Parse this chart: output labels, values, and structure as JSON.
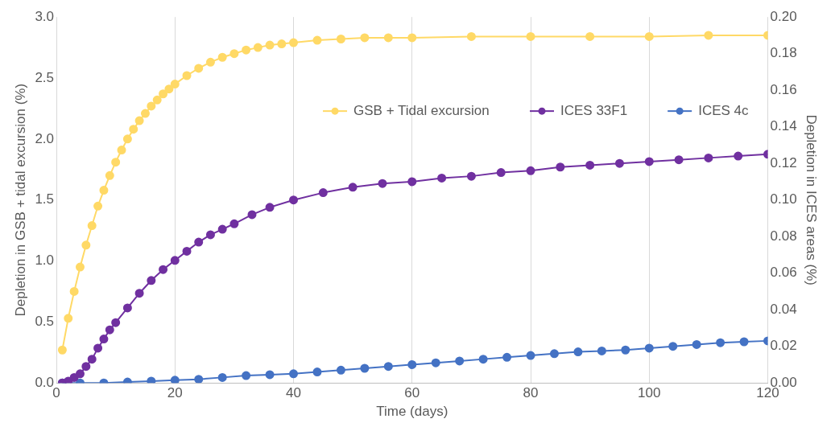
{
  "chart_data": {
    "type": "line",
    "xlabel": "Time (days)",
    "ylabel": "Depletion in GSB + tidal excursion (%)",
    "y2label": "Depletion in ICES areas (%)",
    "xlim": [
      0,
      120
    ],
    "xticks": [
      0,
      20,
      40,
      60,
      80,
      100,
      120
    ],
    "ylim": [
      0,
      3
    ],
    "yticks": [
      {
        "value": 0,
        "label": "0.0"
      },
      {
        "value": 0.5,
        "label": "0.5"
      },
      {
        "value": 1,
        "label": "1.0"
      },
      {
        "value": 1.5,
        "label": "1.5"
      },
      {
        "value": 2,
        "label": "2.0"
      },
      {
        "value": 2.5,
        "label": "2.5"
      },
      {
        "value": 3,
        "label": "3.0"
      }
    ],
    "y2lim": [
      0,
      0.2
    ],
    "y2ticks": [
      {
        "value": 0,
        "label": "0.00"
      },
      {
        "value": 0.02,
        "label": "0.02"
      },
      {
        "value": 0.04,
        "label": "0.04"
      },
      {
        "value": 0.06,
        "label": "0.06"
      },
      {
        "value": 0.08,
        "label": "0.08"
      },
      {
        "value": 0.1,
        "label": "0.10"
      },
      {
        "value": 0.12,
        "label": "0.12"
      },
      {
        "value": 0.14,
        "label": "0.14"
      },
      {
        "value": 0.16,
        "label": "0.16"
      },
      {
        "value": 0.18,
        "label": "0.18"
      },
      {
        "value": 0.2,
        "label": "0.20"
      }
    ],
    "grid": "x",
    "legend": "top right",
    "marker": "circle",
    "line_style": "solid",
    "series": [
      {
        "name": "GSB + Tidal excursion",
        "color": "#ffd966",
        "x": [
          1,
          2,
          3,
          4,
          5,
          6,
          7,
          8,
          9,
          10,
          11,
          12,
          13,
          14,
          15,
          16,
          17,
          18,
          19,
          20,
          22,
          24,
          26,
          28,
          30,
          32,
          34,
          36,
          38,
          40,
          44,
          48,
          52,
          56,
          60,
          70,
          80,
          90,
          100,
          110,
          120
        ],
        "values": [
          0.27,
          0.53,
          0.75,
          0.95,
          1.13,
          1.29,
          1.45,
          1.58,
          1.7,
          1.81,
          1.91,
          2.0,
          2.08,
          2.15,
          2.21,
          2.27,
          2.32,
          2.37,
          2.41,
          2.45,
          2.52,
          2.58,
          2.63,
          2.67,
          2.7,
          2.73,
          2.75,
          2.77,
          2.78,
          2.79,
          2.81,
          2.82,
          2.83,
          2.83,
          2.83,
          2.84,
          2.84,
          2.84,
          2.84,
          2.85,
          2.85
        ]
      },
      {
        "name": "ICES 33F1",
        "color": "#7030a0",
        "axis": "y2",
        "x": [
          1,
          2,
          3,
          4,
          5,
          6,
          7,
          8,
          9,
          10,
          12,
          14,
          16,
          18,
          20,
          22,
          24,
          26,
          28,
          30,
          33,
          36,
          40,
          45,
          50,
          55,
          60,
          65,
          70,
          75,
          80,
          85,
          90,
          95,
          100,
          105,
          110,
          115,
          120
        ],
        "values": [
          0,
          0.001,
          0.003,
          0.005,
          0.009,
          0.013,
          0.019,
          0.024,
          0.029,
          0.033,
          0.041,
          0.049,
          0.056,
          0.062,
          0.067,
          0.072,
          0.077,
          0.081,
          0.084,
          0.087,
          0.092,
          0.096,
          0.1,
          0.104,
          0.107,
          0.109,
          0.11,
          0.112,
          0.113,
          0.115,
          0.116,
          0.118,
          0.119,
          0.12,
          0.121,
          0.122,
          0.123,
          0.124,
          0.125
        ]
      },
      {
        "name": "ICES 4c",
        "color": "#4472c4",
        "axis": "y2",
        "x": [
          1,
          4,
          8,
          12,
          16,
          20,
          24,
          28,
          32,
          36,
          40,
          44,
          48,
          52,
          56,
          60,
          64,
          68,
          72,
          76,
          80,
          84,
          88,
          92,
          96,
          100,
          104,
          108,
          112,
          116,
          120
        ],
        "values": [
          0,
          0,
          0,
          0.0005,
          0.001,
          0.0015,
          0.002,
          0.003,
          0.004,
          0.0045,
          0.005,
          0.006,
          0.007,
          0.008,
          0.009,
          0.01,
          0.011,
          0.012,
          0.013,
          0.014,
          0.015,
          0.016,
          0.017,
          0.0175,
          0.018,
          0.019,
          0.02,
          0.021,
          0.022,
          0.0225,
          0.023
        ]
      }
    ]
  }
}
